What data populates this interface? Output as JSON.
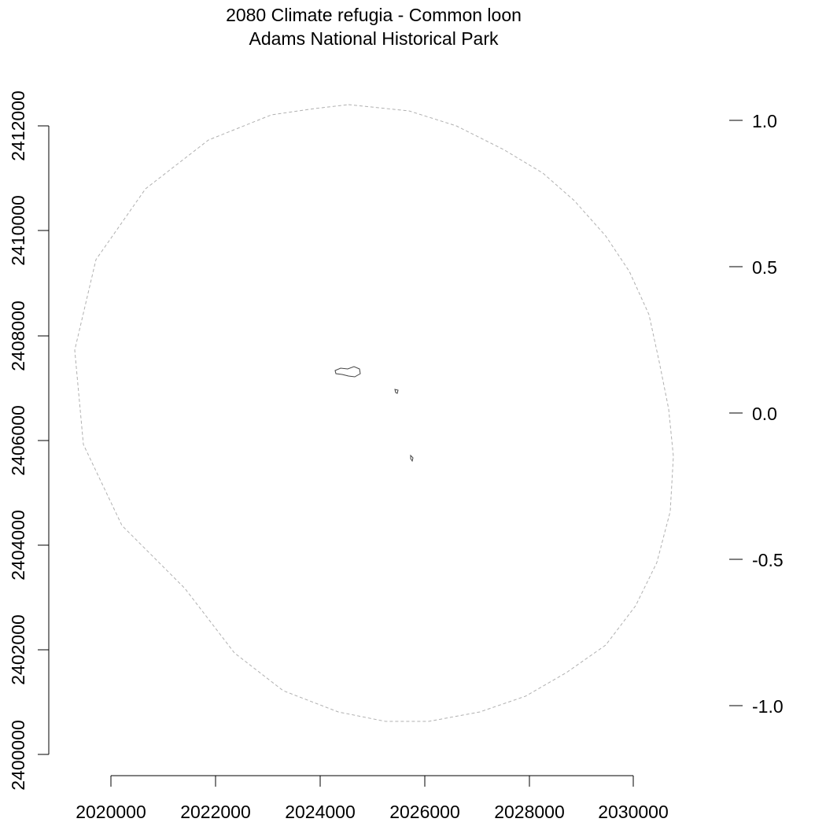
{
  "title": {
    "line1": "2080 Climate refugia - Common loon",
    "line2": "Adams National Historical Park"
  },
  "x_axis": {
    "ticks": [
      "2020000",
      "2022000",
      "2024000",
      "2026000",
      "2028000",
      "2030000"
    ]
  },
  "y_axis": {
    "ticks": [
      "2400000",
      "2402000",
      "2404000",
      "2406000",
      "2408000",
      "2410000",
      "2412000"
    ]
  },
  "legend_scale": {
    "ticks": [
      "1.0",
      "0.5",
      "0.0",
      "-0.5",
      "-1.0"
    ]
  },
  "map_features": {
    "boundary_style": "dashed",
    "boundary_color": "#b0b0b0",
    "refugia_color": "#444444",
    "refugia_patches": 3
  }
}
